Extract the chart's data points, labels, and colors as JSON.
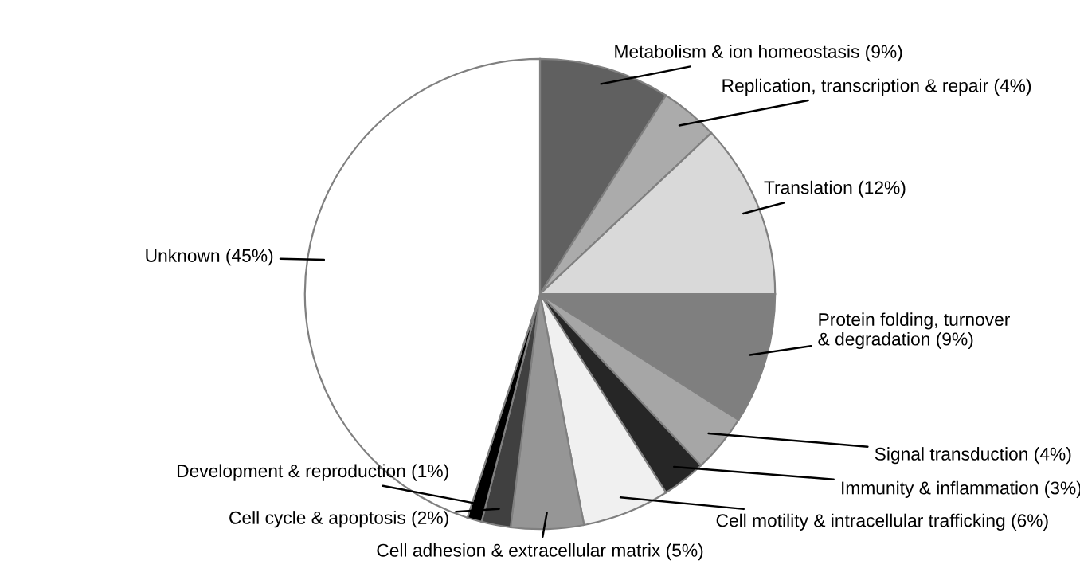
{
  "chart_data": {
    "type": "pie",
    "categories": [
      "Metabolism & ion homeostasis",
      "Replication, transcription & repair",
      "Translation",
      "Protein folding, turnover\n& degradation",
      "Signal transduction",
      "Immunity & inflammation",
      "Cell motility & intracellular trafficking",
      "Cell adhesion & extracellular matrix",
      "Cell cycle & apoptosis",
      "Development & reproduction",
      "Unknown"
    ],
    "values": [
      9,
      4,
      12,
      9,
      4,
      3,
      6,
      5,
      2,
      1,
      45
    ],
    "value_labels": [
      "(9%)",
      "(4%)",
      "(12%)",
      "(9%)",
      "(4%)",
      "(3%)",
      "(6%)",
      "(5%)",
      "(2%)",
      "(1%)",
      "(45%)"
    ],
    "colors": [
      "#606060",
      "#ababab",
      "#d9d9d9",
      "#7f7f7f",
      "#a6a6a6",
      "#262626",
      "#f0f0f0",
      "#969696",
      "#404040",
      "#000000",
      "#ffffff"
    ]
  }
}
